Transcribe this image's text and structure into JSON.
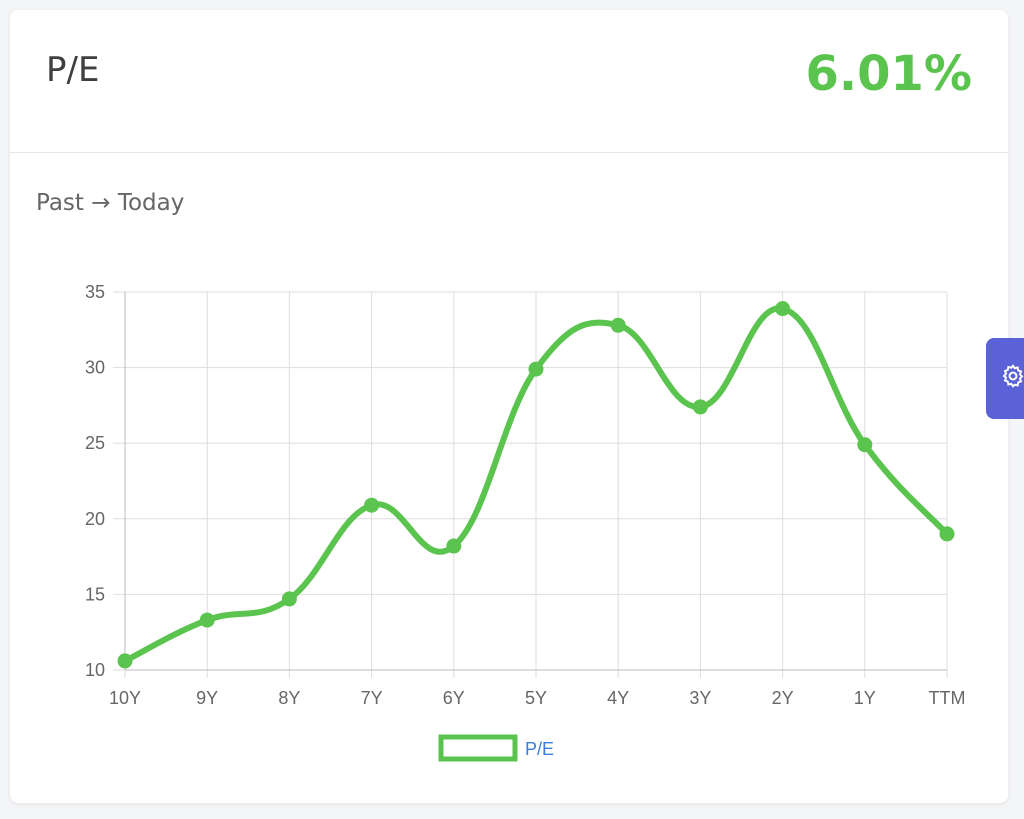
{
  "card": {
    "title": "P/E",
    "value": "6.01%",
    "subtitle": "Past → Today"
  },
  "settings_tab": {
    "icon": "gear-icon"
  },
  "colors": {
    "accent": "#5ac44e",
    "legend_text": "#3b7ddd",
    "settings": "#5b61d6"
  },
  "chart_data": {
    "type": "line",
    "categories": [
      "10Y",
      "9Y",
      "8Y",
      "7Y",
      "6Y",
      "5Y",
      "4Y",
      "3Y",
      "2Y",
      "1Y",
      "TTM"
    ],
    "series": [
      {
        "name": "P/E",
        "values": [
          10.6,
          13.3,
          14.7,
          20.9,
          18.2,
          29.9,
          32.8,
          27.4,
          33.9,
          24.9,
          19.0
        ]
      }
    ],
    "yticks": [
      10,
      15,
      20,
      25,
      30,
      35
    ],
    "ylim": [
      10,
      35
    ],
    "grid": true,
    "legend": "bottom",
    "xlabel": "",
    "ylabel": ""
  }
}
